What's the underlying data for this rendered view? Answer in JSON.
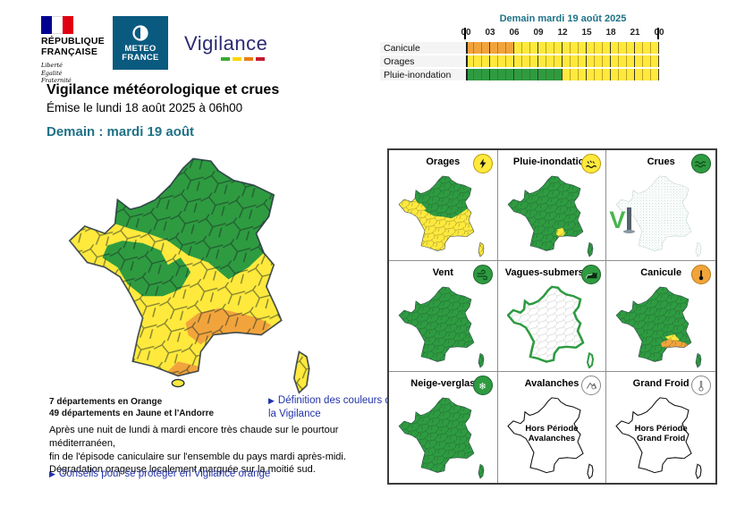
{
  "colors": {
    "green": "#2e9b41",
    "yellow": "#ffe93d",
    "orange": "#f2a43c",
    "teal": "#1f7287",
    "link": "#2233aa",
    "brand": "#2b2a72",
    "mf_blue": "#0a5a80",
    "legend_green": "#3aaa35",
    "legend_yellow": "#ffd500",
    "legend_orange": "#e87f12",
    "legend_red": "#c41a2e"
  },
  "header": {
    "republique": {
      "line1": "RÉPUBLIQUE",
      "line2": "FRANÇAISE",
      "motto": "Liberté\nÉgalité\nFraternité"
    },
    "meteo_france": {
      "line1": "METEO",
      "line2": "FRANCE"
    },
    "brand": "Vigilance"
  },
  "timeline": {
    "title": "Demain mardi 19 août 2025",
    "hours": [
      "00",
      "03",
      "06",
      "09",
      "12",
      "15",
      "18",
      "21",
      "00"
    ],
    "rows": [
      {
        "label": "Canicule",
        "segments": [
          {
            "from": 0,
            "to": 6,
            "level": "orange"
          },
          {
            "from": 6,
            "to": 24,
            "level": "yellow"
          }
        ]
      },
      {
        "label": "Orages",
        "segments": [
          {
            "from": 0,
            "to": 24,
            "level": "yellow"
          }
        ]
      },
      {
        "label": "Pluie-inondation",
        "segments": [
          {
            "from": 0,
            "to": 12,
            "level": "green"
          },
          {
            "from": 12,
            "to": 24,
            "level": "yellow"
          }
        ]
      }
    ]
  },
  "titles": {
    "main": "Vigilance météorologique et crues",
    "issued": "Émise le lundi 18 août 2025 à 06h00",
    "day": "Demain : mardi 19 août"
  },
  "summary": {
    "orange_count": "7 départements en Orange",
    "yellow_count": "49 départements en Jaune et l'Andorre",
    "definition_link": "Définition des couleurs de la Vigilance",
    "bulletin_lines": [
      "Après une nuit de lundi à mardi encore très chaude sur le pourtour méditerranéen,",
      "fin de l'épisode caniculaire sur l'ensemble du pays mardi après-midi.",
      "Dégradation orageuse localement marquée sur la moitié sud."
    ],
    "advice_link": "Conseils pour se protéger en Vigilance orange"
  },
  "crues_logo": {
    "letter": "V"
  },
  "hazards": [
    {
      "id": "orages",
      "label": "Orages",
      "icon": "lightning-icon",
      "level": "yellow"
    },
    {
      "id": "pluie",
      "label": "Pluie-inondation",
      "icon": "rain-flood-icon",
      "level": "yellow"
    },
    {
      "id": "crues",
      "label": "Crues",
      "icon": "flood-wave-icon",
      "level": "green"
    },
    {
      "id": "vent",
      "label": "Vent",
      "icon": "wind-icon",
      "level": "green"
    },
    {
      "id": "vagues",
      "label": "Vagues-submersion",
      "icon": "wave-icon",
      "level": "green"
    },
    {
      "id": "canicule",
      "label": "Canicule",
      "icon": "thermometer-hot-icon",
      "level": "orange"
    },
    {
      "id": "neige",
      "label": "Neige-verglas",
      "icon": "snowflake-icon",
      "level": "green"
    },
    {
      "id": "avalanches",
      "label": "Avalanches",
      "icon": "avalanche-icon",
      "level": "none",
      "status": "Hors Période\nAvalanches"
    },
    {
      "id": "grandfroid",
      "label": "Grand Froid",
      "icon": "thermometer-cold-icon",
      "level": "none",
      "status": "Hors Période\nGrand Froid"
    }
  ]
}
